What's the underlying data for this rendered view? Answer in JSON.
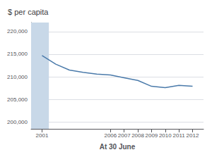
{
  "chart_data": {
    "type": "line",
    "x": [
      2001,
      2002,
      2003,
      2004,
      2005,
      2006,
      2007,
      2008,
      2009,
      2010,
      2011,
      2012
    ],
    "values": [
      214700,
      212800,
      211500,
      211000,
      210600,
      210400,
      209800,
      209200,
      207900,
      207600,
      208100,
      207900
    ],
    "color": "#4a7aaa",
    "xlabel": "At 30 June",
    "ylabel": "$ per capita",
    "xlim": [
      2000.2,
      2012.8
    ],
    "xticks": [
      2001,
      2006,
      2007,
      2008,
      2009,
      2010,
      2011,
      2012
    ],
    "ylim": [
      198500,
      222000
    ],
    "yticks": [
      {
        "value": 200000,
        "label": "200,000"
      },
      {
        "value": 205000,
        "label": "205,000"
      },
      {
        "value": 210000,
        "label": "210,000"
      },
      {
        "value": 215000,
        "label": "215,000"
      },
      {
        "value": 220000,
        "label": "220,000"
      }
    ],
    "grid": true,
    "shaded_x": [
      2000.2,
      2001.5
    ],
    "shaded_color": "#c8d8e8"
  }
}
